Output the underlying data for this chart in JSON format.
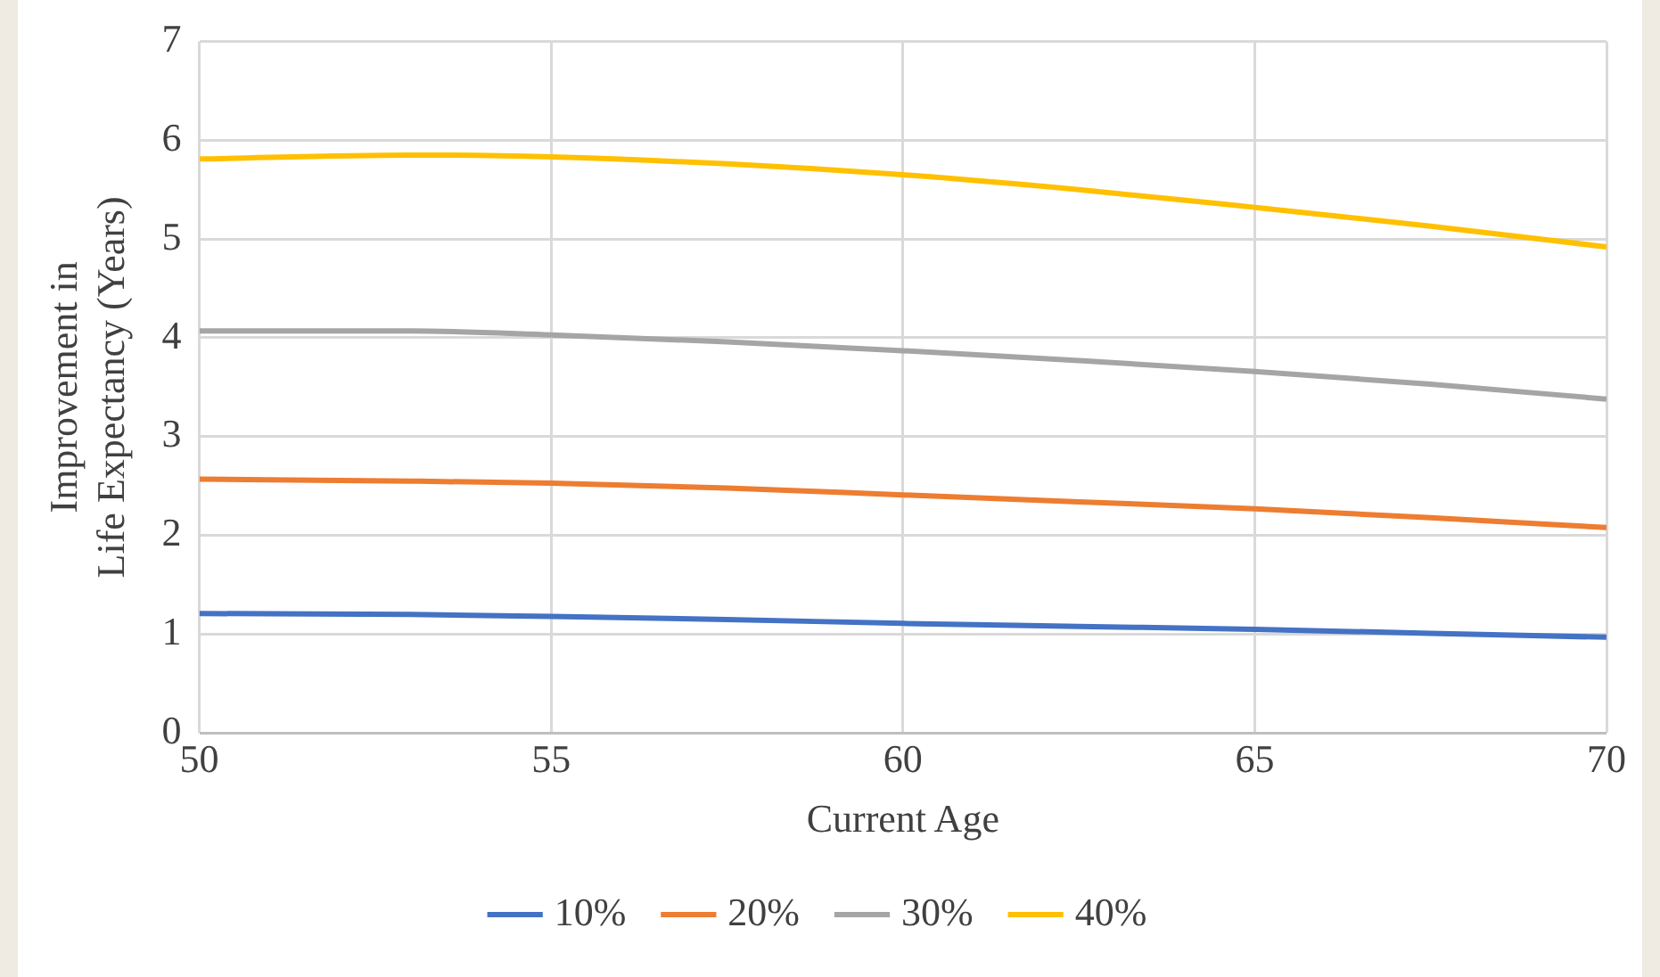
{
  "chart_data": {
    "type": "line",
    "xlabel": "Current Age",
    "ylabel": "Improvement in Life Expectancy (Years)",
    "x": [
      50,
      53,
      55,
      57.5,
      60,
      62.5,
      65,
      67.5,
      70
    ],
    "series": [
      {
        "name": "10%",
        "color": "#4472c4",
        "values": [
          1.21,
          1.2,
          1.18,
          1.15,
          1.11,
          1.08,
          1.05,
          1.01,
          0.97
        ]
      },
      {
        "name": "20%",
        "color": "#ed7d31",
        "values": [
          2.57,
          2.55,
          2.53,
          2.48,
          2.41,
          2.34,
          2.27,
          2.18,
          2.08
        ]
      },
      {
        "name": "30%",
        "color": "#a5a5a5",
        "values": [
          4.07,
          4.07,
          4.03,
          3.96,
          3.87,
          3.77,
          3.66,
          3.53,
          3.38
        ]
      },
      {
        "name": "40%",
        "color": "#ffc000",
        "values": [
          5.81,
          5.85,
          5.83,
          5.76,
          5.65,
          5.5,
          5.32,
          5.13,
          4.92
        ]
      }
    ],
    "xlim": [
      50,
      70
    ],
    "xticks": [
      50,
      55,
      60,
      65,
      70
    ],
    "ylim": [
      0,
      7
    ],
    "yticks": [
      0,
      1,
      2,
      3,
      4,
      5,
      6,
      7
    ],
    "grid": true,
    "legend": "bottom",
    "marker": "none",
    "line_style": "solid"
  }
}
